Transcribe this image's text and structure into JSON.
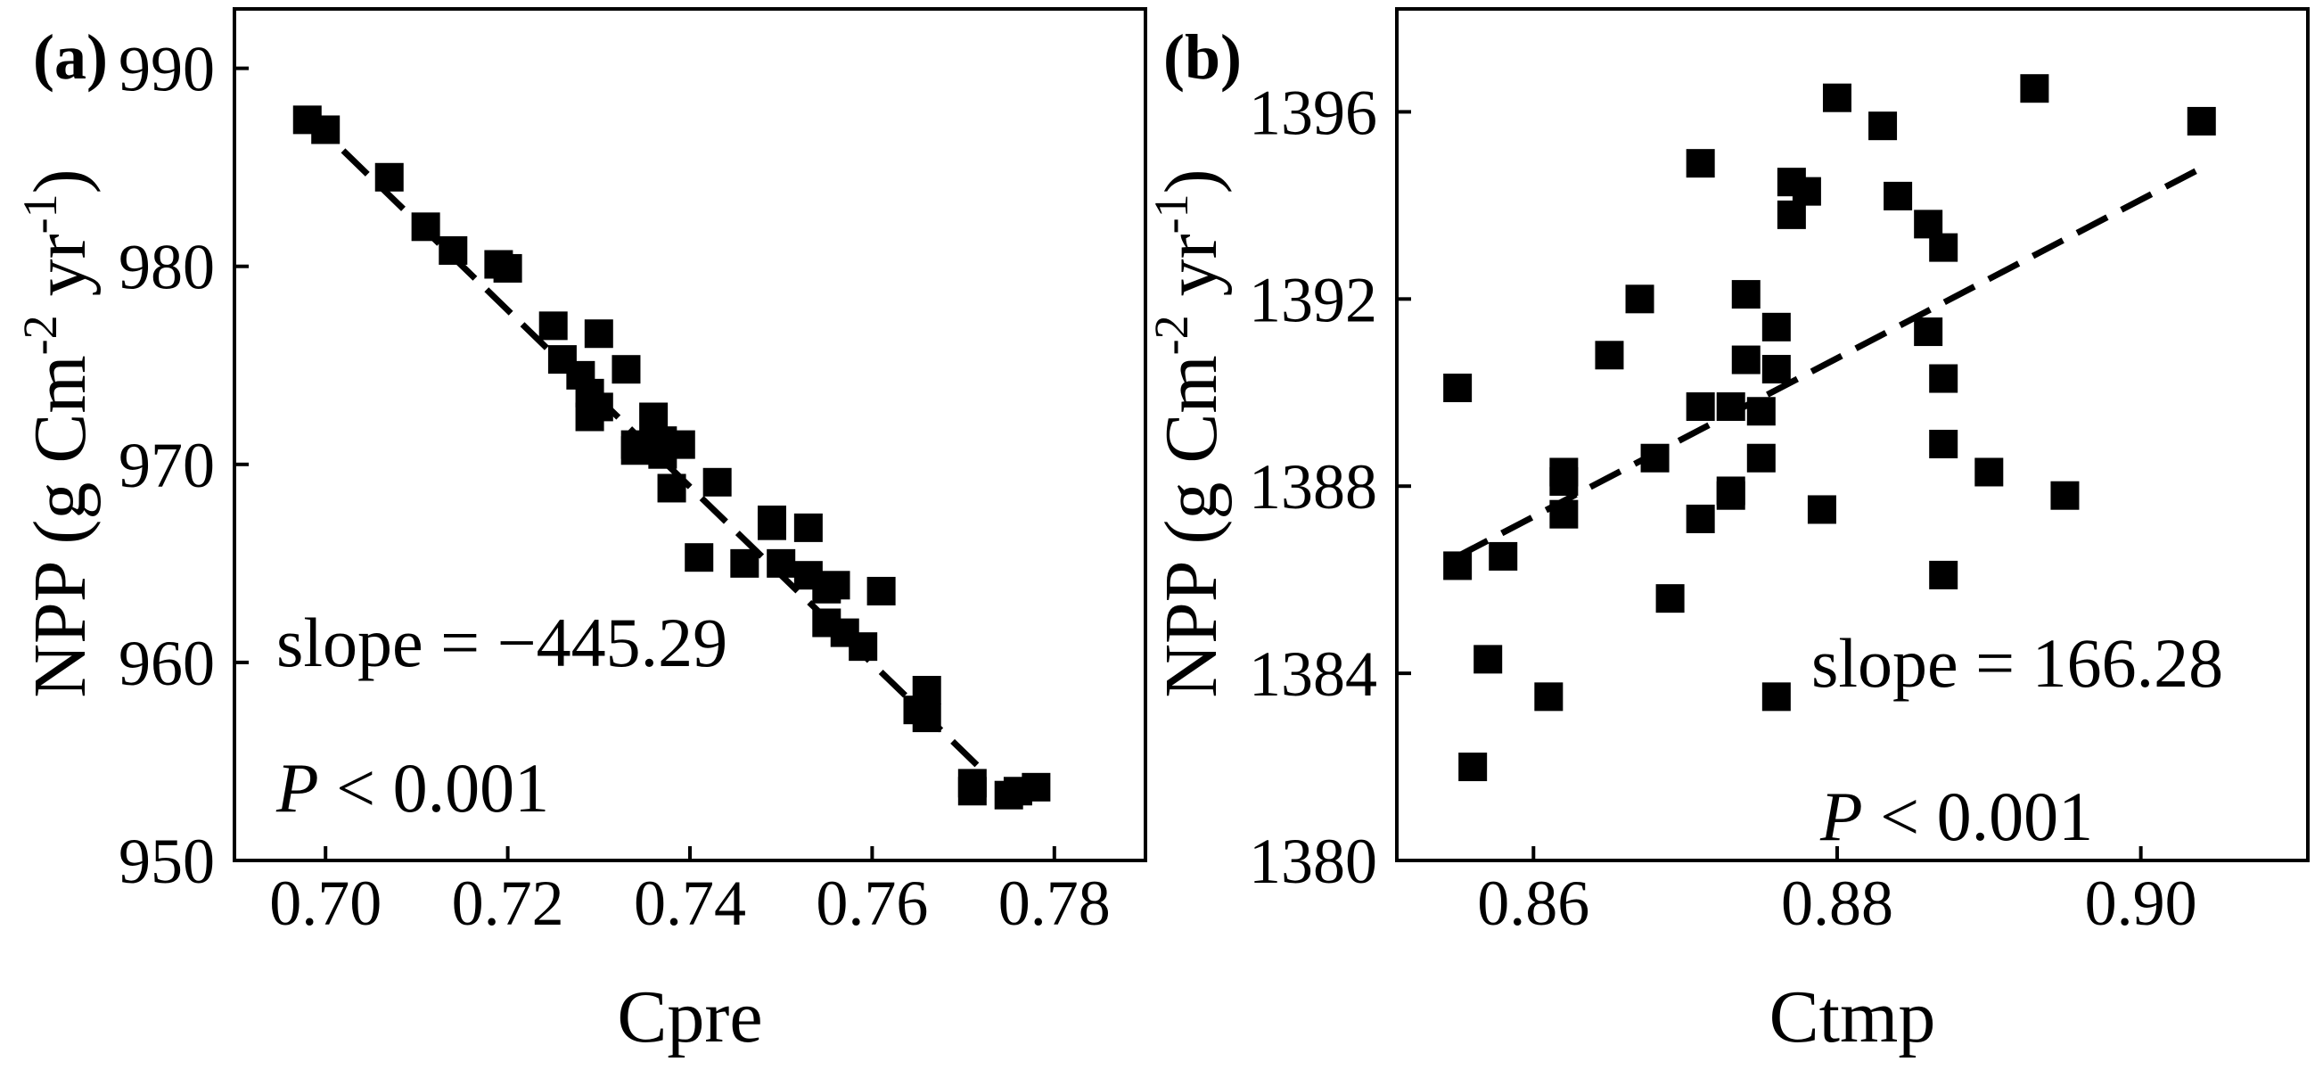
{
  "chart_data": [
    {
      "type": "scatter",
      "panel_label": "(a)",
      "xlabel": "Cpre",
      "ylabel": "NPP (g Cm",
      "ylabel_unit_sup1": "-2",
      "ylabel_mid": " yr",
      "ylabel_unit_sup2": "-1",
      "ylabel_end": ")",
      "xlim": [
        0.69,
        0.79
      ],
      "ylim": [
        950,
        993
      ],
      "xticks": [
        0.7,
        0.72,
        0.74,
        0.76,
        0.78
      ],
      "xtick_labels": [
        "0.70",
        "0.72",
        "0.74",
        "0.76",
        "0.78"
      ],
      "yticks": [
        950,
        960,
        970,
        980,
        990
      ],
      "ytick_labels": [
        "950",
        "960",
        "970",
        "980",
        "990"
      ],
      "annotations": {
        "slope": "slope = −445.29",
        "p_italic": "P",
        "p_rest": " < 0.001"
      },
      "fit_line": {
        "x": [
          0.698,
          0.772
        ],
        "y": [
          987.6,
          954.6
        ]
      },
      "points": [
        {
          "x": 0.698,
          "y": 987.4
        },
        {
          "x": 0.7,
          "y": 986.9
        },
        {
          "x": 0.707,
          "y": 984.5
        },
        {
          "x": 0.711,
          "y": 982.0
        },
        {
          "x": 0.714,
          "y": 980.8
        },
        {
          "x": 0.719,
          "y": 980.1
        },
        {
          "x": 0.72,
          "y": 979.9
        },
        {
          "x": 0.725,
          "y": 977.0
        },
        {
          "x": 0.726,
          "y": 975.3
        },
        {
          "x": 0.728,
          "y": 974.5
        },
        {
          "x": 0.729,
          "y": 973.6
        },
        {
          "x": 0.729,
          "y": 972.4
        },
        {
          "x": 0.73,
          "y": 972.9
        },
        {
          "x": 0.73,
          "y": 976.6
        },
        {
          "x": 0.733,
          "y": 974.8
        },
        {
          "x": 0.734,
          "y": 971.0
        },
        {
          "x": 0.734,
          "y": 970.7
        },
        {
          "x": 0.736,
          "y": 972.4
        },
        {
          "x": 0.737,
          "y": 971.2
        },
        {
          "x": 0.737,
          "y": 970.5
        },
        {
          "x": 0.738,
          "y": 968.8
        },
        {
          "x": 0.739,
          "y": 971.0
        },
        {
          "x": 0.741,
          "y": 965.3
        },
        {
          "x": 0.743,
          "y": 969.1
        },
        {
          "x": 0.746,
          "y": 965.0
        },
        {
          "x": 0.749,
          "y": 967.2
        },
        {
          "x": 0.749,
          "y": 966.9
        },
        {
          "x": 0.75,
          "y": 965.0
        },
        {
          "x": 0.753,
          "y": 966.8
        },
        {
          "x": 0.753,
          "y": 964.4
        },
        {
          "x": 0.755,
          "y": 963.7
        },
        {
          "x": 0.755,
          "y": 962.0
        },
        {
          "x": 0.756,
          "y": 963.9
        },
        {
          "x": 0.757,
          "y": 961.5
        },
        {
          "x": 0.759,
          "y": 960.8
        },
        {
          "x": 0.761,
          "y": 963.6
        },
        {
          "x": 0.765,
          "y": 957.6
        },
        {
          "x": 0.766,
          "y": 958.6
        },
        {
          "x": 0.766,
          "y": 957.2
        },
        {
          "x": 0.771,
          "y": 953.9
        },
        {
          "x": 0.771,
          "y": 953.5
        },
        {
          "x": 0.775,
          "y": 953.3
        },
        {
          "x": 0.776,
          "y": 953.5
        },
        {
          "x": 0.778,
          "y": 953.7
        }
      ]
    },
    {
      "type": "scatter",
      "panel_label": "(b)",
      "xlabel": "Ctmp",
      "ylabel": "NPP (g Cm",
      "ylabel_unit_sup1": "-2",
      "ylabel_mid": " yr",
      "ylabel_unit_sup2": "-1",
      "ylabel_end": ")",
      "xlim": [
        0.851,
        0.911
      ],
      "ylim": [
        1380,
        1398.2
      ],
      "xticks": [
        0.86,
        0.88,
        0.9
      ],
      "xtick_labels": [
        "0.86",
        "0.88",
        "0.90"
      ],
      "yticks": [
        1380,
        1384,
        1388,
        1392,
        1396
      ],
      "ytick_labels": [
        "1380",
        "1384",
        "1388",
        "1392",
        "1396"
      ],
      "annotations": {
        "slope": "slope = 166.28",
        "p_italic": "P",
        "p_rest": " < 0.001"
      },
      "fit_line": {
        "x": [
          0.855,
          0.904
        ],
        "y": [
          1386.5,
          1394.8
        ]
      },
      "points": [
        {
          "x": 0.855,
          "y": 1390.1
        },
        {
          "x": 0.855,
          "y": 1386.3
        },
        {
          "x": 0.856,
          "y": 1382.0
        },
        {
          "x": 0.857,
          "y": 1384.3
        },
        {
          "x": 0.858,
          "y": 1386.5
        },
        {
          "x": 0.861,
          "y": 1383.5
        },
        {
          "x": 0.862,
          "y": 1387.4
        },
        {
          "x": 0.862,
          "y": 1388.1
        },
        {
          "x": 0.862,
          "y": 1388.3
        },
        {
          "x": 0.865,
          "y": 1390.8
        },
        {
          "x": 0.867,
          "y": 1392.0
        },
        {
          "x": 0.868,
          "y": 1388.6
        },
        {
          "x": 0.869,
          "y": 1385.6
        },
        {
          "x": 0.871,
          "y": 1387.3
        },
        {
          "x": 0.871,
          "y": 1389.7
        },
        {
          "x": 0.871,
          "y": 1394.9
        },
        {
          "x": 0.873,
          "y": 1387.8
        },
        {
          "x": 0.873,
          "y": 1389.7
        },
        {
          "x": 0.873,
          "y": 1387.9
        },
        {
          "x": 0.874,
          "y": 1390.7
        },
        {
          "x": 0.874,
          "y": 1392.1
        },
        {
          "x": 0.875,
          "y": 1388.6
        },
        {
          "x": 0.875,
          "y": 1389.6
        },
        {
          "x": 0.876,
          "y": 1390.5
        },
        {
          "x": 0.876,
          "y": 1391.4
        },
        {
          "x": 0.876,
          "y": 1383.5
        },
        {
          "x": 0.877,
          "y": 1394.5
        },
        {
          "x": 0.877,
          "y": 1393.8
        },
        {
          "x": 0.878,
          "y": 1394.3
        },
        {
          "x": 0.879,
          "y": 1387.5
        },
        {
          "x": 0.88,
          "y": 1396.3
        },
        {
          "x": 0.883,
          "y": 1395.7
        },
        {
          "x": 0.884,
          "y": 1394.2
        },
        {
          "x": 0.886,
          "y": 1393.6
        },
        {
          "x": 0.886,
          "y": 1391.3
        },
        {
          "x": 0.887,
          "y": 1390.3
        },
        {
          "x": 0.887,
          "y": 1393.1
        },
        {
          "x": 0.887,
          "y": 1388.9
        },
        {
          "x": 0.887,
          "y": 1386.1
        },
        {
          "x": 0.89,
          "y": 1388.3
        },
        {
          "x": 0.893,
          "y": 1396.5
        },
        {
          "x": 0.895,
          "y": 1387.8
        },
        {
          "x": 0.904,
          "y": 1395.8
        }
      ]
    }
  ]
}
